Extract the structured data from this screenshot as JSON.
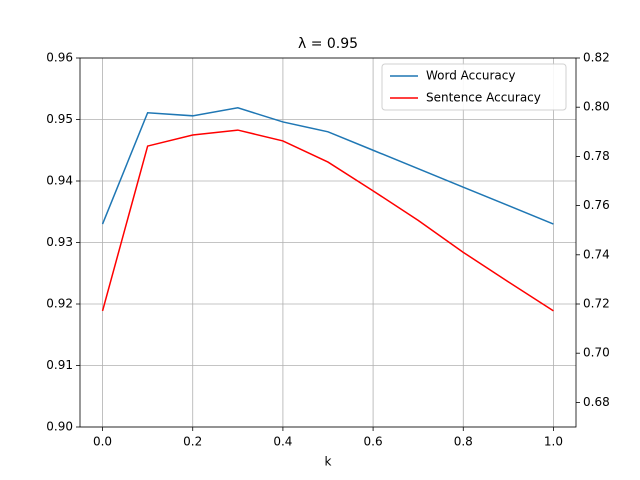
{
  "chart_data": {
    "type": "line",
    "title": "λ = 0.95",
    "xlabel": "k",
    "x": [
      0.0,
      0.1,
      0.2,
      0.3,
      0.4,
      0.5,
      0.6,
      0.7,
      0.8,
      0.9,
      1.0
    ],
    "series": [
      {
        "name": "Word Accuracy",
        "color": "#1f77b4",
        "values": [
          0.933,
          0.9511,
          0.9506,
          0.9519,
          0.9496,
          0.948,
          0.945,
          0.942,
          0.939,
          0.936,
          0.933
        ]
      },
      {
        "name": "Sentence Accuracy",
        "color": "#ff0000",
        "axis": "y2",
        "values": [
          0.7172,
          0.7842,
          0.7887,
          0.7907,
          0.7863,
          0.7777,
          0.766,
          0.754,
          0.741,
          0.729,
          0.7172
        ]
      }
    ],
    "xlim": [
      -0.05,
      1.05
    ],
    "xticks": [
      {
        "value": 0,
        "label": "0.0"
      },
      0.2,
      0.4,
      0.6,
      0.8,
      {
        "value": 1,
        "label": "1.0"
      }
    ],
    "ylim": [
      0.9,
      0.96
    ],
    "yticks": [
      {
        "value": 0.9,
        "label": "0.90"
      },
      0.91,
      0.92,
      0.93,
      0.94,
      0.95,
      0.96
    ],
    "y2lim": [
      0.67,
      0.82
    ],
    "y2ticks": [
      0.68,
      {
        "value": 0.7,
        "label": "0.70"
      },
      0.72,
      0.74,
      0.76,
      0.78,
      {
        "value": 0.8,
        "label": "0.80"
      },
      0.82
    ],
    "grid": true,
    "legend": "upper right"
  }
}
